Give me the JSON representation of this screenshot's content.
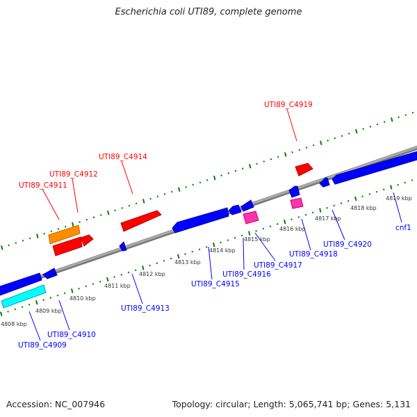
{
  "title": "Escherichia coli UTI89, complete genome",
  "accession": "Accession: NC_007946",
  "topology": "Topology: circular; Length: 5,065,741 bp; Genes: 5,131",
  "colors": {
    "forward": "#ff0000",
    "reverse": "#0000ff",
    "backbone": "#888888",
    "ticks": "#008000"
  },
  "kbp_labels": [
    "4808 kbp",
    "4809 kbp",
    "4810 kbp",
    "4811 kbp",
    "4812 kbp",
    "4813 kbp",
    "4814 kbp",
    "4815 kbp",
    "4816 kbp",
    "4817 kbp",
    "4818 kbp",
    "4819 kbp"
  ],
  "forward_genes": [
    "UTI89_C4911",
    "UTI89_C4912",
    "UTI89_C4914",
    "UTI89_C4919"
  ],
  "reverse_genes": [
    "UTI89_C4909",
    "UTI89_C4910",
    "UTI89_C4913",
    "UTI89_C4915",
    "UTI89_C4916",
    "UTI89_C4917",
    "UTI89_C4918",
    "UTI89_C4920",
    "cnf1"
  ]
}
